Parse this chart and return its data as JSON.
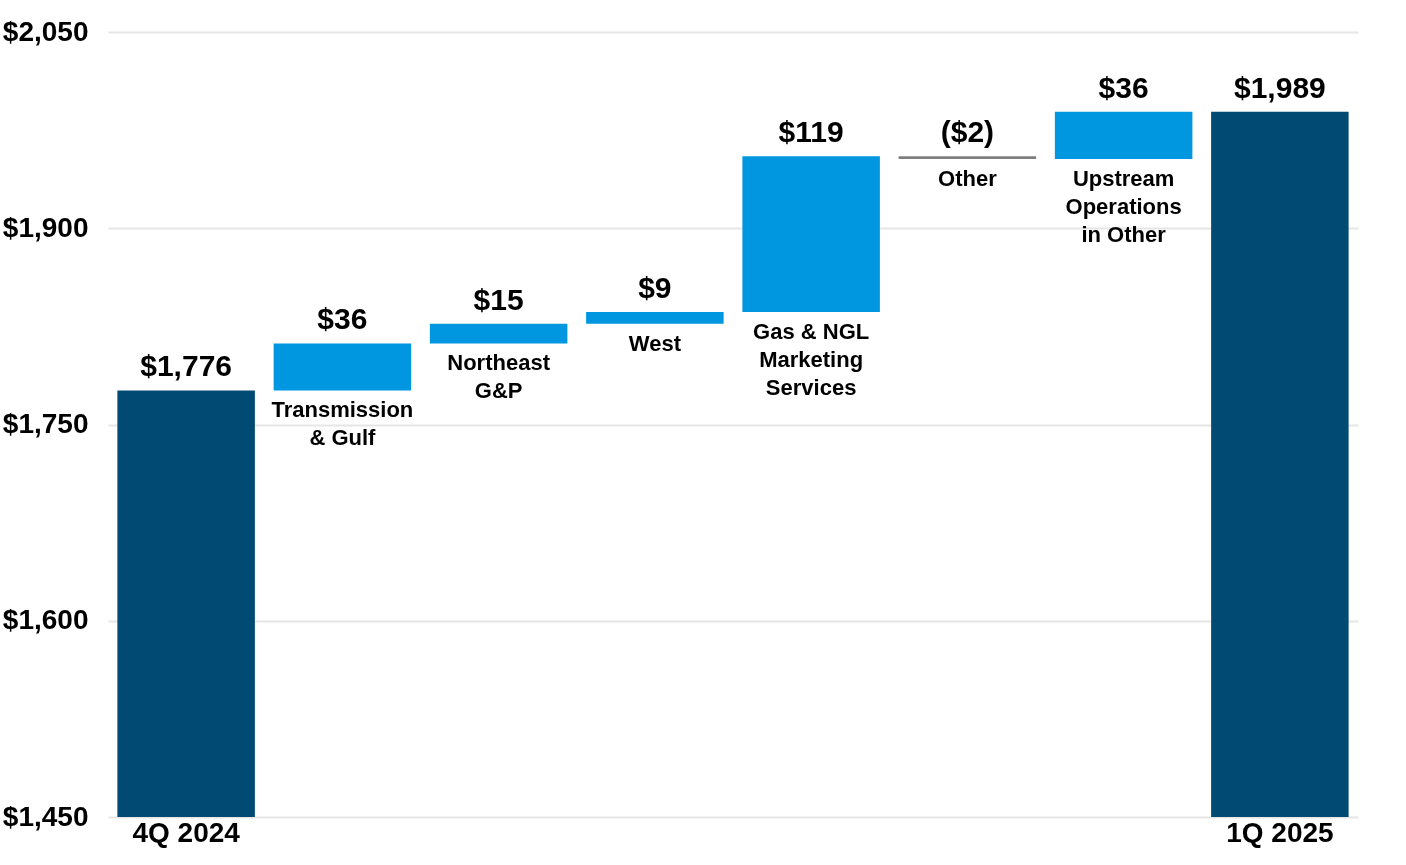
{
  "chart_data": {
    "type": "bar",
    "categories": [
      "4Q 2024",
      "Transmission & Gulf",
      "Northeast G&P",
      "West",
      "Gas & NGL Marketing Services",
      "Other",
      "Upstream Operations in Other",
      "1Q 2025"
    ],
    "values": [
      1776,
      36,
      15,
      9,
      119,
      -2,
      36,
      1989
    ],
    "base": [
      null,
      1776,
      1812,
      1827,
      1836,
      1955,
      1953,
      null
    ],
    "colors": [
      "#004a73",
      "#0096e0",
      "#0096e0",
      "#0096e0",
      "#0096e0",
      "#7f7f7f",
      "#0096e0",
      "#004a73"
    ],
    "value_labels": [
      "$1,776",
      "$36",
      "$15",
      "$9",
      "$119",
      "($2)",
      "$36",
      "$1,989"
    ],
    "ylim": [
      1450,
      2050
    ],
    "yticks": [
      {
        "value": 1450,
        "label": "$1,450"
      },
      {
        "value": 1600,
        "label": "$1,600"
      },
      {
        "value": 1750,
        "label": "$1,750"
      },
      {
        "value": 1900,
        "label": "$1,900"
      },
      {
        "value": 2050,
        "label": "$2,050"
      }
    ],
    "grid": "y"
  }
}
